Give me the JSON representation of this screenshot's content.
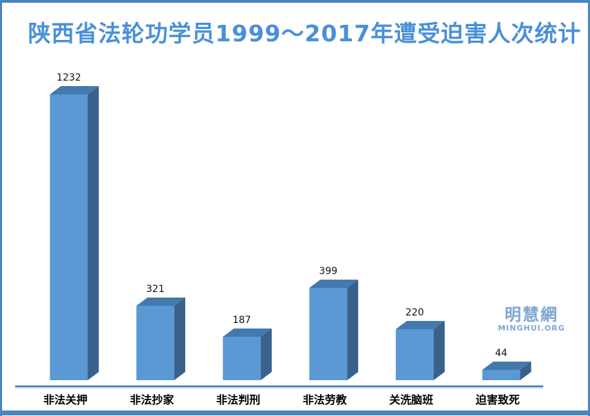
{
  "frame": {
    "border_color": "#4A86BE",
    "background": "#FFFFFF"
  },
  "title": {
    "text": "陕西省法轮功学员1999～2017年遭受迫害人次统计",
    "color": "#4A90D8"
  },
  "watermark": {
    "cn": "明慧網",
    "en": "MINGHUI.ORG",
    "color": "#7EA6D2"
  },
  "chart_data": {
    "type": "bar",
    "style": "3d-column",
    "title": "陕西省法轮功学员1999～2017年遭受迫害人次统计",
    "categories": [
      "非法关押",
      "非法抄家",
      "非法判刑",
      "非法劳教",
      "关洗脑班",
      "迫害致死"
    ],
    "values": [
      1232,
      321,
      187,
      399,
      220,
      44
    ],
    "value_labels_shown": true,
    "xlabel": "",
    "ylabel": "",
    "ylim": [
      0,
      1300
    ],
    "grid": false,
    "legend": false,
    "colors": {
      "bar_front": "#5B99D5",
      "bar_top": "#4379AE",
      "bar_side": "#38618C",
      "axis_line": "#4472C4",
      "axis_halo": "#C9D9F0",
      "label_color": "#111111"
    }
  }
}
